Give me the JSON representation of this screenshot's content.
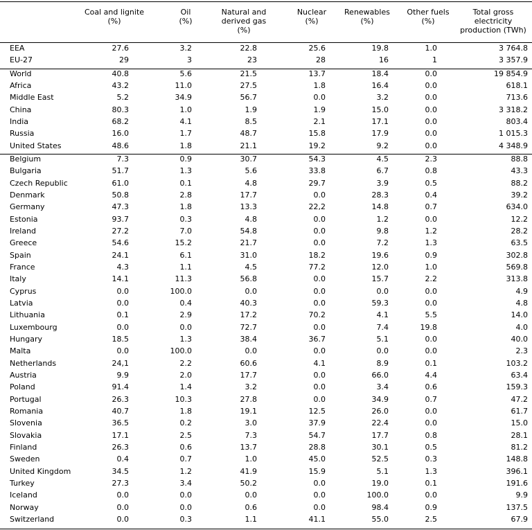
{
  "table": {
    "header": [
      "Coal and lignite\n(%)",
      "Oil\n(%)",
      "Natural and\nderived gas\n(%)",
      "Nuclear\n(%)",
      "Renewables\n(%)",
      "Other fuels\n(%)",
      "Total gross\nelectricity\nproduction (TWh)"
    ],
    "groups": [
      [
        [
          "EEA",
          "27.6",
          "3.2",
          "22.8",
          "25.6",
          "19.8",
          "1.0",
          "3 764.8"
        ],
        [
          "EU-27",
          "29",
          "3",
          "23",
          "28",
          "16",
          "1",
          "3 357.9"
        ]
      ],
      [
        [
          "World",
          "40.8",
          "5.6",
          "21.5",
          "13.7",
          "18.4",
          "0.0",
          "19 854.9"
        ],
        [
          "Africa",
          "43.2",
          "11.0",
          "27.5",
          "1.8",
          "16.4",
          "0.0",
          "618.1"
        ],
        [
          "Middle East",
          "5.2",
          "34.9",
          "56.7",
          "0.0",
          "3.2",
          "0.0",
          "713.6"
        ],
        [
          "China",
          "80.3",
          "1.0",
          "1.9",
          "1.9",
          "15.0",
          "0.0",
          "3 318.2"
        ],
        [
          "India",
          "68.2",
          "4.1",
          "8.5",
          "2.1",
          "17.1",
          "0.0",
          "803.4"
        ],
        [
          "Russia",
          "16.0",
          "1.7",
          "48.7",
          "15.8",
          "17.9",
          "0.0",
          "1 015.3"
        ],
        [
          "United States",
          "48.6",
          "1.8",
          "21.1",
          "19.2",
          "9.2",
          "0.0",
          "4 348.9"
        ]
      ],
      [
        [
          "Belgium",
          "7.3",
          "0.9",
          "30.7",
          "54.3",
          "4.5",
          "2.3",
          "88.8"
        ],
        [
          "Bulgaria",
          "51.7",
          "1.3",
          "5.6",
          "33.8",
          "6.7",
          "0.8",
          "43.3"
        ],
        [
          "Czech Republic",
          "61.0",
          "0.1",
          "4.8",
          "29.7",
          "3.9",
          "0.5",
          "88.2"
        ],
        [
          "Denmark",
          "50.8",
          "2.8",
          "17.7",
          "0.0",
          "28.3",
          "0.4",
          "39.2"
        ],
        [
          "Germany",
          "47.3",
          "1.8",
          "13.3",
          "22,2",
          "14.8",
          "0.7",
          "634.0"
        ],
        [
          "Estonia",
          "93.7",
          "0.3",
          "4.8",
          "0.0",
          "1.2",
          "0.0",
          "12.2"
        ],
        [
          "Ireland",
          "27.2",
          "7.0",
          "54.8",
          "0.0",
          "9.8",
          "1.2",
          "28.2"
        ],
        [
          "Greece",
          "54.6",
          "15.2",
          "21.7",
          "0.0",
          "7.2",
          "1.3",
          "63.5"
        ],
        [
          "Spain",
          "24.1",
          "6.1",
          "31.0",
          "18.2",
          "19.6",
          "0.9",
          "302.8"
        ],
        [
          "France",
          "4.3",
          "1.1",
          "4.5",
          "77.2",
          "12.0",
          "1.0",
          "569.8"
        ],
        [
          "Italy",
          "14.1",
          "11.3",
          "56.8",
          "0.0",
          "15.7",
          "2.2",
          "313.8"
        ],
        [
          "Cyprus",
          "0.0",
          "100.0",
          "0.0",
          "0.0",
          "0.0",
          "0.0",
          "4.9"
        ],
        [
          "Latvia",
          "0.0",
          "0.4",
          "40.3",
          "0.0",
          "59.3",
          "0.0",
          "4.8"
        ],
        [
          "Lithuania",
          "0.1",
          "2.9",
          "17.2",
          "70.2",
          "4.1",
          "5.5",
          "14.0"
        ],
        [
          "Luxembourg",
          "0.0",
          "0.0",
          "72.7",
          "0.0",
          "7.4",
          "19.8",
          "4.0"
        ],
        [
          "Hungary",
          "18.5",
          "1.3",
          "38.4",
          "36.7",
          "5.1",
          "0.0",
          "40.0"
        ],
        [
          "Malta",
          "0.0",
          "100.0",
          "0.0",
          "0.0",
          "0.0",
          "0.0",
          "2.3"
        ],
        [
          "Netherlands",
          "24,1",
          "2.2",
          "60.6",
          "4.1",
          "8.9",
          "0.1",
          "103.2"
        ],
        [
          "Austria",
          "9.9",
          "2.0",
          "17.7",
          "0.0",
          "66.0",
          "4.4",
          "63.4"
        ],
        [
          "Poland",
          "91.4",
          "1.4",
          "3.2",
          "0.0",
          "3.4",
          "0.6",
          "159.3"
        ],
        [
          "Portugal",
          "26.3",
          "10.3",
          "27.8",
          "0.0",
          "34.9",
          "0.7",
          "47.2"
        ],
        [
          "Romania",
          "40.7",
          "1.8",
          "19.1",
          "12.5",
          "26.0",
          "0.0",
          "61.7"
        ],
        [
          "Slovenia",
          "36.5",
          "0.2",
          "3.0",
          "37.9",
          "22.4",
          "0.0",
          "15.0"
        ],
        [
          "Slovakia",
          "17.1",
          "2.5",
          "7.3",
          "54.7",
          "17.7",
          "0.8",
          "28.1"
        ],
        [
          "Finland",
          "26.3",
          "0.6",
          "13.7",
          "28.8",
          "30.1",
          "0.5",
          "81.2"
        ],
        [
          "Sweden",
          "0.4",
          "0.7",
          "1.0",
          "45.0",
          "52.5",
          "0.3",
          "148.8"
        ],
        [
          "United Kingdom",
          "34.5",
          "1.2",
          "41.9",
          "15.9",
          "5.1",
          "1.3",
          "396.1"
        ],
        [
          "Turkey",
          "27.3",
          "3.4",
          "50.2",
          "0.0",
          "19.0",
          "0.1",
          "191.6"
        ],
        [
          "Iceland",
          "0.0",
          "0.0",
          "0.0",
          "0.0",
          "100.0",
          "0.0",
          "9.9"
        ],
        [
          "Norway",
          "0.0",
          "0.0",
          "0.6",
          "0.0",
          "98.4",
          "0.9",
          "137.5"
        ],
        [
          "Switzerland",
          "0.0",
          "0.3",
          "1.1",
          "41.1",
          "55.0",
          "2.5",
          "67.9"
        ]
      ]
    ]
  }
}
